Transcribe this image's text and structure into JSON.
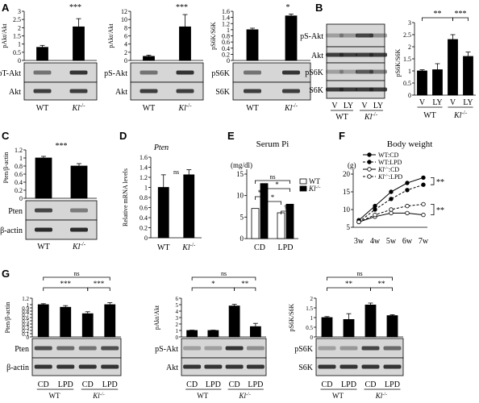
{
  "panels": {
    "A": {
      "label": "A",
      "charts": [
        {
          "ylabel": "pAkt/Akt",
          "ticks": [
            "3",
            "2.5",
            "2",
            "1.5",
            "1",
            "0.5",
            "0"
          ],
          "ymax": 3,
          "values": [
            0.8,
            2.05
          ],
          "errors": [
            0.12,
            0.5
          ],
          "sig": "***",
          "blots": [
            "pT-Akt",
            "Akt"
          ],
          "xlabels": [
            "WT",
            "Kl-/-"
          ]
        },
        {
          "ylabel": "pAkt/Akt",
          "ticks": [
            "12",
            "10",
            "8",
            "6",
            "4",
            "2",
            "0"
          ],
          "ymax": 12,
          "values": [
            1.0,
            8.2
          ],
          "errors": [
            0.3,
            3.0
          ],
          "sig": "***",
          "blots": [
            "pS-Akt",
            "Akt"
          ],
          "xlabels": [
            "WT",
            "Kl-/-"
          ]
        },
        {
          "ylabel": "pS6K/S6K",
          "ticks": [
            "1.6",
            "1.4",
            "1.2",
            "1",
            "0.8",
            "0.6",
            "0.4",
            "0.2",
            "0"
          ],
          "ymax": 1.6,
          "values": [
            1.0,
            1.45
          ],
          "errors": [
            0.05,
            0.06
          ],
          "sig": "*",
          "blots": [
            "pS6K",
            "S6K"
          ],
          "xlabels": [
            "WT",
            "Kl-/-"
          ]
        }
      ]
    },
    "B": {
      "label": "B",
      "blots": [
        "pS-Akt",
        "Akt",
        "pS6K",
        "S6K"
      ],
      "lanes": [
        "V",
        "LY",
        "V",
        "LY"
      ],
      "groups": [
        "WT",
        "Kl-/-"
      ],
      "chart": {
        "ylabel": "pS6K/S6K",
        "ticks": [
          "3",
          "2.5",
          "2",
          "1.5",
          "1",
          "0.5",
          "0"
        ],
        "ymax": 3,
        "values": [
          1.0,
          1.05,
          2.3,
          1.6
        ],
        "errors": [
          0.05,
          0.25,
          0.2,
          0.18
        ],
        "sig1": "**",
        "sig2": "***"
      }
    },
    "C": {
      "label": "C",
      "ylabel": "Pten/β-actin",
      "ticks": [
        "1.2",
        "1",
        "0.8",
        "0.6",
        "0.4",
        "0.2",
        "0"
      ],
      "ymax": 1.2,
      "values": [
        1.0,
        0.8
      ],
      "errors": [
        0.04,
        0.06
      ],
      "sig": "***",
      "blots": [
        "Pten",
        "β-actin"
      ],
      "xlabels": [
        "WT",
        "Kl-/-"
      ]
    },
    "D": {
      "label": "D",
      "title": "Pten",
      "ylabel": "Relative mRNA levels",
      "ticks": [
        "1.6",
        "1.4",
        "1.2",
        "1",
        "0.8",
        "0.6",
        "0.4",
        "0.2",
        "0"
      ],
      "ymax": 1.6,
      "values": [
        1.0,
        1.25
      ],
      "errors": [
        0.25,
        0.1
      ],
      "sig": "ns",
      "xlabels": [
        "WT",
        "Kl-/-"
      ]
    },
    "E": {
      "label": "E",
      "title": "Serum Pi",
      "unit": "(mg/dl)",
      "ticks": [
        "15",
        "10",
        "5",
        "0"
      ],
      "ymax": 15,
      "groups": [
        "CD",
        "LPD"
      ],
      "legend": [
        "WT",
        "Kl-/-"
      ],
      "values_wt": [
        7.0,
        6.0
      ],
      "values_kl": [
        12.8,
        8.0
      ],
      "errors_wt": [
        0.2,
        0.3
      ],
      "errors_kl": [
        0.5,
        0.6
      ],
      "sig_ns": "ns",
      "sig_a": "*",
      "sig_b": "*",
      "sig_c": "*",
      "sig_d": "†"
    },
    "F": {
      "label": "F",
      "title": "Body weight",
      "unit": "(g)",
      "ticks": [
        "20",
        "15",
        "10",
        "5"
      ],
      "ymin": 5,
      "ymax": 20,
      "x": [
        "3w",
        "4w",
        "5w",
        "6w",
        "7w"
      ],
      "series": [
        {
          "name": "WT:CD",
          "values": [
            7,
            11,
            15,
            17.5,
            19
          ],
          "style": "solid",
          "marker": "filled"
        },
        {
          "name": "WT:LPD",
          "values": [
            6.5,
            10,
            13,
            15.5,
            17
          ],
          "style": "dashed",
          "marker": "filled"
        },
        {
          "name": "Kl-/-:CD",
          "values": [
            6.5,
            8,
            9,
            9,
            8.5
          ],
          "style": "solid",
          "marker": "open"
        },
        {
          "name": "Kl-/-:LPD",
          "values": [
            6.5,
            8.5,
            10,
            11,
            11.5
          ],
          "style": "dashed",
          "marker": "open"
        }
      ],
      "sig_top": "**",
      "sig_bottom": "**"
    },
    "G": {
      "label": "G",
      "lanes": [
        "CD",
        "LPD",
        "CD",
        "LPD"
      ],
      "groups": [
        "WT",
        "Kl-/-"
      ],
      "charts": [
        {
          "ylabel": "Pten/β-actin",
          "ticks": [
            "1.2",
            "1",
            "0.9",
            "0.8",
            "0.7",
            "0.6",
            "0.5",
            "0.4",
            "0.3",
            "0.2",
            "0.1",
            "0"
          ],
          "ymax": 1.2,
          "values": [
            1.0,
            0.92,
            0.72,
            1.0
          ],
          "errors": [
            0.03,
            0.05,
            0.06,
            0.06
          ],
          "sig_ns": "ns",
          "sig1": "***",
          "sig2": "***",
          "blots": [
            "Pten",
            "β-actin"
          ]
        },
        {
          "ylabel": "pAkt/Akt",
          "ticks": [
            "6",
            "5",
            "4",
            "3",
            "2",
            "1",
            "0"
          ],
          "ymax": 6,
          "values": [
            1.0,
            1.0,
            4.8,
            1.6
          ],
          "errors": [
            0.05,
            0.05,
            0.25,
            0.5
          ],
          "sig_ns": "ns",
          "sig1": "*",
          "sig2": "**",
          "blots": [
            "pS-Akt",
            "Akt"
          ]
        },
        {
          "ylabel": "pS6K/S6K",
          "ticks": [
            "2",
            "1.5",
            "1",
            "0.5",
            "0"
          ],
          "ymax": 2,
          "values": [
            1.0,
            0.9,
            1.65,
            1.1
          ],
          "errors": [
            0.05,
            0.3,
            0.1,
            0.05
          ],
          "sig_ns": "ns",
          "sig1": "**",
          "sig2": "**",
          "blots": [
            "pS6K",
            "S6K"
          ]
        }
      ]
    }
  }
}
